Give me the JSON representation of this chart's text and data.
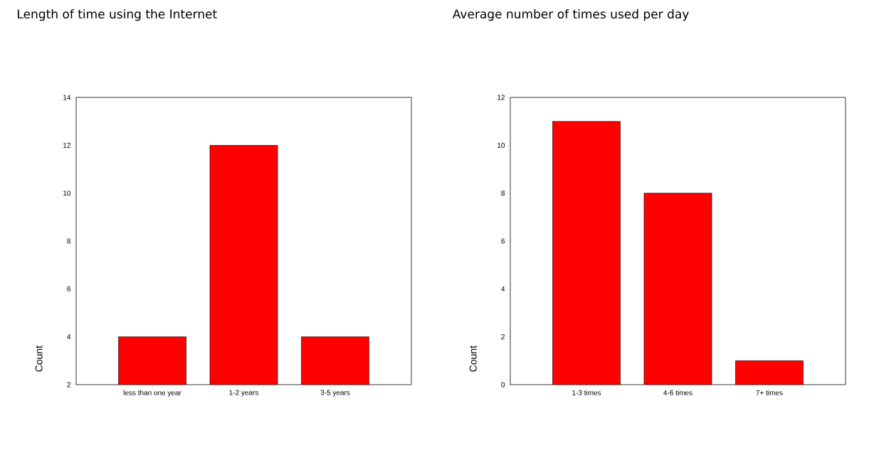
{
  "chart_data": [
    {
      "type": "bar",
      "title": "Length of time using the Internet",
      "ylabel": "Count",
      "categories": [
        "less than one year",
        "1-2 years",
        "3-5 years"
      ],
      "values": [
        4,
        12,
        4
      ],
      "color": "#ff0000",
      "ylim": [
        2,
        14
      ],
      "yticks": [
        2,
        4,
        6,
        8,
        10,
        12,
        14
      ]
    },
    {
      "type": "bar",
      "title": "Average number of times used per day",
      "ylabel": "Count",
      "categories": [
        "1-3 times",
        "4-6 times",
        "7+ times"
      ],
      "values": [
        11,
        8,
        1
      ],
      "color": "#ff0000",
      "ylim": [
        0,
        12
      ],
      "yticks": [
        0,
        2,
        4,
        6,
        8,
        10,
        12
      ]
    }
  ]
}
